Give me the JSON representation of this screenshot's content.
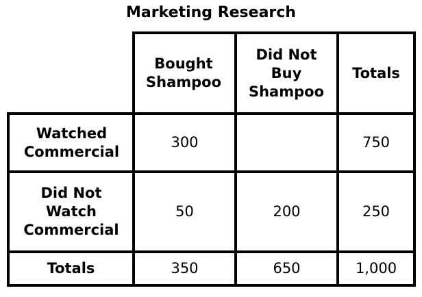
{
  "title": "Marketing Research",
  "columns": {
    "bought": "Bought Shampoo",
    "not_bought": "Did Not Buy Shampoo",
    "totals": "Totals"
  },
  "rows": [
    {
      "label": "Watched Commercial",
      "bought": "300",
      "not_bought": "",
      "total": "750"
    },
    {
      "label": "Did Not Watch Commercial",
      "bought": "50",
      "not_bought": "200",
      "total": "250"
    },
    {
      "label": "Totals",
      "bought": "350",
      "not_bought": "650",
      "total": "1,000"
    }
  ]
}
